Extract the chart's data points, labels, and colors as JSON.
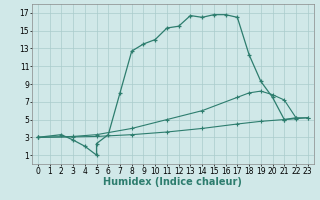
{
  "line1_x": [
    0,
    2,
    3,
    4,
    5,
    5,
    6,
    7,
    8,
    9,
    10,
    11,
    12,
    13,
    14,
    15,
    16,
    17,
    18,
    19,
    20,
    21,
    22
  ],
  "line1_y": [
    3.0,
    3.3,
    2.7,
    2.0,
    1.0,
    2.3,
    3.3,
    8.0,
    12.7,
    13.5,
    14.0,
    15.3,
    15.5,
    16.7,
    16.5,
    16.8,
    16.8,
    16.5,
    12.3,
    9.3,
    7.5,
    5.0,
    5.2
  ],
  "line2_x": [
    0,
    3,
    5,
    8,
    11,
    14,
    17,
    19,
    21,
    22,
    23
  ],
  "line2_y": [
    3.0,
    3.05,
    3.1,
    3.3,
    3.6,
    4.0,
    4.5,
    4.8,
    5.0,
    5.1,
    5.2
  ],
  "line3_x": [
    0,
    3,
    5,
    8,
    11,
    14,
    17,
    18,
    19,
    20,
    21,
    22,
    23
  ],
  "line3_y": [
    3.0,
    3.1,
    3.3,
    4.0,
    5.0,
    6.0,
    7.5,
    8.0,
    8.2,
    7.8,
    7.2,
    5.2,
    5.2
  ],
  "line_color": "#2d7d6e",
  "bg_color": "#d0e8e8",
  "grid_color": "#aacccc",
  "xlabel": "Humidex (Indice chaleur)",
  "xlim": [
    -0.5,
    23.5
  ],
  "ylim": [
    0,
    18
  ],
  "xticks": [
    0,
    1,
    2,
    3,
    4,
    5,
    6,
    7,
    8,
    9,
    10,
    11,
    12,
    13,
    14,
    15,
    16,
    17,
    18,
    19,
    20,
    21,
    22,
    23
  ],
  "yticks": [
    1,
    3,
    5,
    7,
    9,
    11,
    13,
    15,
    17
  ],
  "tick_fontsize": 5.5,
  "xlabel_fontsize": 7.0
}
